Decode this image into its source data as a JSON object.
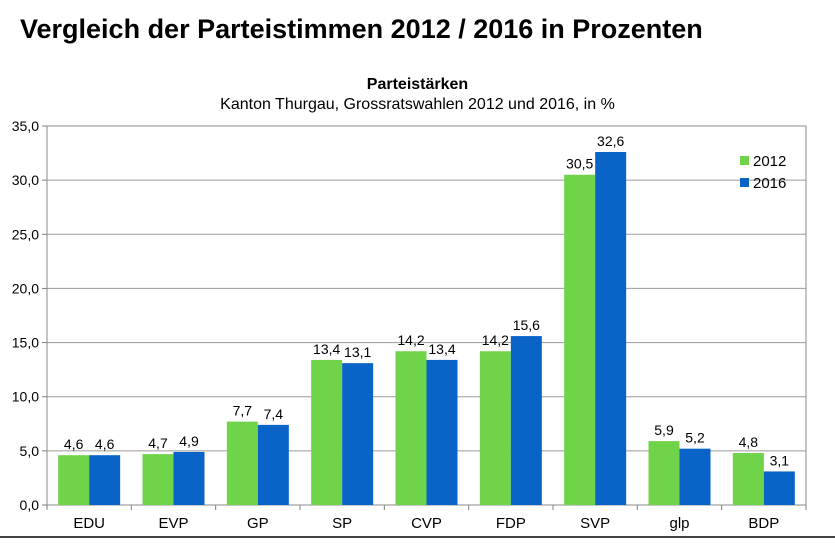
{
  "page": {
    "title": "Vergleich der Parteistimmen 2012 / 2016 in Prozenten"
  },
  "chart_data": {
    "type": "bar",
    "title": "Parteistärken",
    "subtitle": "Kanton Thurgau, Grossratswahlen 2012 und 2016, in %",
    "categories": [
      "EDU",
      "EVP",
      "GP",
      "SP",
      "CVP",
      "FDP",
      "SVP",
      "glp",
      "BDP"
    ],
    "series": [
      {
        "name": "2012",
        "color": "#6fd44a",
        "values": [
          4.6,
          4.7,
          7.7,
          13.4,
          14.2,
          14.2,
          30.5,
          5.9,
          4.8
        ],
        "labels": [
          "4,6",
          "4,7",
          "7,7",
          "13,4",
          "14,2",
          "14,2",
          "30,5",
          "5,9",
          "4,8"
        ]
      },
      {
        "name": "2016",
        "color": "#0a64c8",
        "values": [
          4.6,
          4.9,
          7.4,
          13.1,
          13.4,
          15.6,
          32.6,
          5.2,
          3.1
        ],
        "labels": [
          "4,6",
          "4,9",
          "7,4",
          "13,1",
          "13,4",
          "15,6",
          "32,6",
          "5,2",
          "3,1"
        ]
      }
    ],
    "ylim": [
      0,
      35
    ],
    "yticks": [
      "0,0",
      "5,0",
      "10,0",
      "15,0",
      "20,0",
      "25,0",
      "30,0",
      "35,0"
    ],
    "ytick_values": [
      0,
      5,
      10,
      15,
      20,
      25,
      30,
      35
    ],
    "grid": true,
    "legend": "top-right",
    "xlabel": "",
    "ylabel": ""
  }
}
